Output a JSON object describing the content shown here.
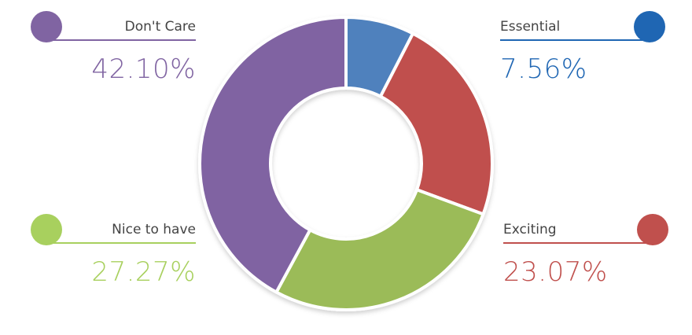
{
  "chart_data": {
    "type": "pie",
    "donut": true,
    "series": [
      {
        "name": "Essential",
        "value": 7.56,
        "label": "7.56%",
        "color": "#4F81BD",
        "legend_color": "#1F66B3"
      },
      {
        "name": "Exciting",
        "value": 23.07,
        "label": "23.07%",
        "color": "#C0504D",
        "legend_color": "#C0504D"
      },
      {
        "name": "Nice to have",
        "value": 27.27,
        "label": "27.27%",
        "color": "#9BBB59",
        "legend_color": "#A8D05E"
      },
      {
        "name": "Don't Care",
        "value": 42.1,
        "label": "42.10%",
        "color": "#8064A2",
        "legend_color": "#8064A2"
      }
    ],
    "start_angle_deg": 0,
    "direction": "clockwise"
  },
  "legend": {
    "dont_care": {
      "name": "Don't Care",
      "pct": "42.10%",
      "color": "#8064A2"
    },
    "nice": {
      "name": "Nice to have",
      "pct": "27.27%",
      "color": "#A8D05E"
    },
    "essential": {
      "name": "Essential",
      "pct": "7.56%",
      "color": "#1F66B3"
    },
    "exciting": {
      "name": "Exciting",
      "pct": "23.07%",
      "color": "#C0504D"
    }
  }
}
